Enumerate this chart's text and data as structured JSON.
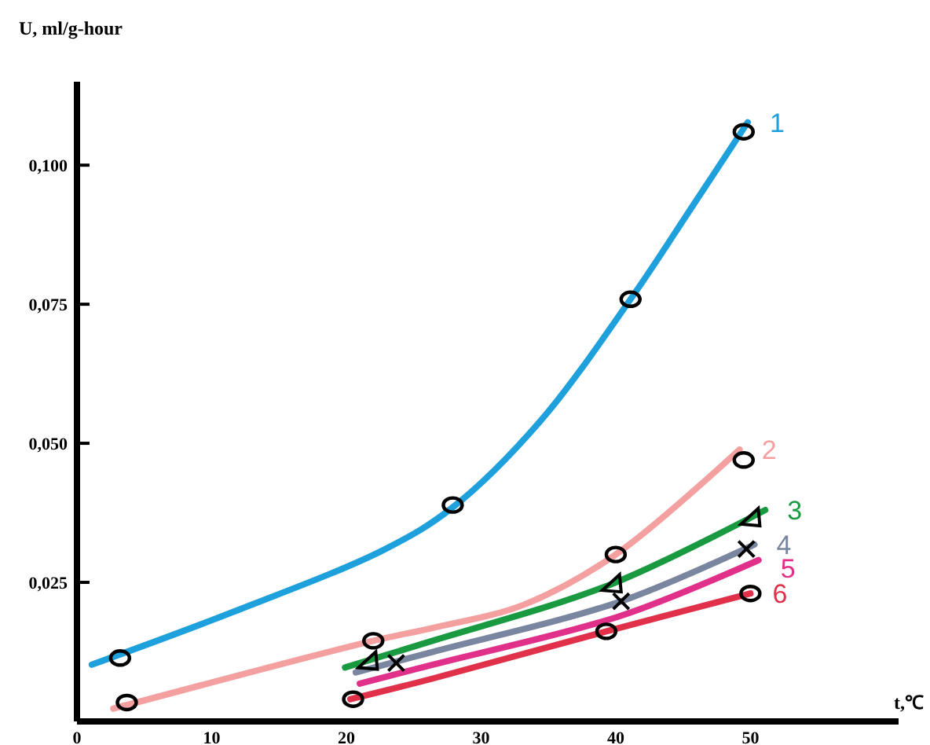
{
  "chart_data": {
    "type": "line",
    "xlabel": "t,℃",
    "ylabel": "U, ml/g-hour",
    "xlim": [
      0,
      61
    ],
    "xticks": [
      0,
      10,
      20,
      30,
      40,
      50
    ],
    "ylim": [
      0,
      0.115
    ],
    "yticks": [
      {
        "value": 0.025,
        "label": "0,025"
      },
      {
        "value": 0.05,
        "label": "0,050"
      },
      {
        "value": 0.075,
        "label": "0,075"
      },
      {
        "value": 0.1,
        "label": "0,100"
      }
    ],
    "marker": "none",
    "series": [
      {
        "name": "1",
        "color": "#1ea0dc",
        "x": [
          1.1,
          11.5,
          22.9,
          27.9,
          34.4,
          41.1,
          45.8,
          49.8
        ],
        "values": [
          0.0102,
          0.0196,
          0.031,
          0.0385,
          0.054,
          0.0759,
          0.093,
          0.1077
        ]
      },
      {
        "name": "2",
        "color": "#f4a0a0",
        "x": [
          2.7,
          22,
          26.4,
          33.2,
          40,
          49.2
        ],
        "values": [
          0.0023,
          0.0145,
          0.0168,
          0.021,
          0.03,
          0.0489
        ]
      },
      {
        "name": "3",
        "color": "#1a9a40",
        "x": [
          19.9,
          26.4,
          39.7,
          51.1
        ],
        "values": [
          0.0097,
          0.0145,
          0.0247,
          0.038
        ]
      },
      {
        "name": "4",
        "color": "#7a86a0",
        "x": [
          20.7,
          26.4,
          40.4,
          50.3
        ],
        "values": [
          0.0088,
          0.0125,
          0.0216,
          0.0318
        ]
      },
      {
        "name": "5",
        "color": "#e0308a",
        "x": [
          21,
          26.4,
          40.4,
          50.6
        ],
        "values": [
          0.0068,
          0.0102,
          0.019,
          0.029
        ]
      },
      {
        "name": "6",
        "color": "#e0304a",
        "x": [
          20.3,
          26.4,
          39.3,
          50
        ],
        "values": [
          0.004,
          0.0077,
          0.0162,
          0.023
        ]
      },
      {
        "type": "scatter",
        "color": "#000000",
        "marker": "circle",
        "x": [
          3.2,
          27.9,
          41.1,
          49.5
        ],
        "values": [
          0.0114,
          0.0389,
          0.0759,
          0.106
        ]
      },
      {
        "type": "scatter",
        "color": "#000000",
        "marker": "circle",
        "x": [
          3.7,
          22,
          40,
          49.5
        ],
        "values": [
          0.0034,
          0.0145,
          0.03,
          0.047
        ]
      },
      {
        "type": "scatter",
        "color": "#000000",
        "marker": "triangle",
        "x": [
          21.6,
          39.7,
          50
        ],
        "values": [
          0.0108,
          0.0247,
          0.0366
        ]
      },
      {
        "type": "scatter",
        "color": "#000000",
        "marker": "cross",
        "x": [
          23.7,
          40.4,
          49.7
        ],
        "values": [
          0.0105,
          0.0216,
          0.031
        ]
      },
      {
        "type": "scatter",
        "color": "#000000",
        "marker": "circle",
        "x": [
          20.5,
          39.3,
          50
        ],
        "values": [
          0.004,
          0.0162,
          0.023
        ]
      }
    ]
  }
}
